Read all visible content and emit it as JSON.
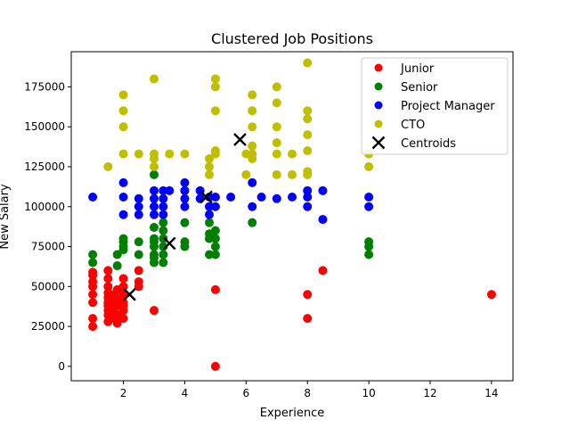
{
  "chart_data": {
    "type": "scatter",
    "title": "Clustered Job Positions",
    "xlabel": "Experience",
    "ylabel": "New Salary",
    "xlim": [
      0.3,
      14.7
    ],
    "ylim": [
      -9000,
      197000
    ],
    "xticks": [
      2,
      4,
      6,
      8,
      10,
      12,
      14
    ],
    "yticks": [
      0,
      25000,
      50000,
      75000,
      100000,
      125000,
      150000,
      175000
    ],
    "ytick_labels": [
      "0",
      "25000",
      "50000",
      "75000",
      "100000",
      "125000",
      "150000",
      "175000"
    ],
    "grid": false,
    "legend_position": "top-right",
    "series": [
      {
        "name": "Junior",
        "color": "#ff0000",
        "marker": "circle",
        "points": [
          [
            1,
            25000
          ],
          [
            1,
            30000
          ],
          [
            1,
            40000
          ],
          [
            1,
            45000
          ],
          [
            1,
            50000
          ],
          [
            1,
            53000
          ],
          [
            1,
            57000
          ],
          [
            1,
            59000
          ],
          [
            1.5,
            28000
          ],
          [
            1.5,
            32000
          ],
          [
            1.5,
            35000
          ],
          [
            1.5,
            38000
          ],
          [
            1.5,
            40000
          ],
          [
            1.5,
            43000
          ],
          [
            1.5,
            46000
          ],
          [
            1.5,
            50000
          ],
          [
            1.5,
            55000
          ],
          [
            1.5,
            60000
          ],
          [
            1.7,
            30000
          ],
          [
            1.7,
            33000
          ],
          [
            1.7,
            36000
          ],
          [
            1.7,
            40000
          ],
          [
            1.7,
            45000
          ],
          [
            1.8,
            27000
          ],
          [
            1.8,
            32000
          ],
          [
            1.8,
            38000
          ],
          [
            1.8,
            42000
          ],
          [
            1.8,
            48000
          ],
          [
            2,
            30000
          ],
          [
            2,
            35000
          ],
          [
            2,
            38000
          ],
          [
            2,
            40000
          ],
          [
            2,
            45000
          ],
          [
            2,
            50000
          ],
          [
            2,
            55000
          ],
          [
            2.5,
            50000
          ],
          [
            2.5,
            53000
          ],
          [
            2.5,
            60000
          ],
          [
            3,
            35000
          ],
          [
            5,
            48000
          ],
          [
            5,
            0
          ],
          [
            8,
            30000
          ],
          [
            8,
            45000
          ],
          [
            8.5,
            60000
          ],
          [
            14,
            45000
          ]
        ]
      },
      {
        "name": "Senior",
        "color": "#008000",
        "marker": "circle",
        "points": [
          [
            1,
            65000
          ],
          [
            1,
            70000
          ],
          [
            1.8,
            63000
          ],
          [
            1.8,
            70000
          ],
          [
            2,
            73000
          ],
          [
            2,
            75000
          ],
          [
            2,
            78000
          ],
          [
            2,
            80000
          ],
          [
            2.5,
            70000
          ],
          [
            2.5,
            78000
          ],
          [
            3,
            65000
          ],
          [
            3,
            68000
          ],
          [
            3,
            70000
          ],
          [
            3,
            75000
          ],
          [
            3,
            78000
          ],
          [
            3,
            80000
          ],
          [
            3,
            87000
          ],
          [
            3,
            120000
          ],
          [
            3.3,
            65000
          ],
          [
            3.3,
            70000
          ],
          [
            3.3,
            75000
          ],
          [
            3.3,
            80000
          ],
          [
            3.3,
            85000
          ],
          [
            3.3,
            90000
          ],
          [
            4,
            75000
          ],
          [
            4,
            78000
          ],
          [
            4,
            90000
          ],
          [
            4.8,
            70000
          ],
          [
            4.8,
            80000
          ],
          [
            4.8,
            83000
          ],
          [
            4.8,
            90000
          ],
          [
            5,
            70000
          ],
          [
            5,
            75000
          ],
          [
            5,
            80000
          ],
          [
            5,
            85000
          ],
          [
            6.2,
            90000
          ],
          [
            10,
            70000
          ],
          [
            10,
            75000
          ],
          [
            10,
            78000
          ]
        ]
      },
      {
        "name": "Project Manager",
        "color": "#0000ff",
        "marker": "circle",
        "points": [
          [
            1,
            106000
          ],
          [
            2,
            95000
          ],
          [
            2,
            106000
          ],
          [
            2,
            115000
          ],
          [
            2.5,
            95000
          ],
          [
            2.5,
            100000
          ],
          [
            2.5,
            105000
          ],
          [
            3,
            95000
          ],
          [
            3,
            100000
          ],
          [
            3,
            105000
          ],
          [
            3,
            110000
          ],
          [
            3.3,
            95000
          ],
          [
            3.3,
            100000
          ],
          [
            3.3,
            105000
          ],
          [
            3.3,
            110000
          ],
          [
            3.5,
            110000
          ],
          [
            4,
            100000
          ],
          [
            4,
            105000
          ],
          [
            4,
            110000
          ],
          [
            4,
            115000
          ],
          [
            4.5,
            105000
          ],
          [
            4.5,
            110000
          ],
          [
            4.8,
            95000
          ],
          [
            4.8,
            100000
          ],
          [
            4.8,
            106000
          ],
          [
            5,
            100000
          ],
          [
            5,
            106000
          ],
          [
            5.5,
            106000
          ],
          [
            6.2,
            100000
          ],
          [
            6.2,
            115000
          ],
          [
            6.5,
            106000
          ],
          [
            7,
            105000
          ],
          [
            7.5,
            106000
          ],
          [
            8,
            100000
          ],
          [
            8,
            106000
          ],
          [
            8,
            110000
          ],
          [
            8.5,
            92000
          ],
          [
            8.5,
            110000
          ],
          [
            10,
            100000
          ],
          [
            10,
            106000
          ]
        ]
      },
      {
        "name": "CTO",
        "color": "#bfbf00",
        "marker": "circle",
        "points": [
          [
            1.5,
            125000
          ],
          [
            2,
            133000
          ],
          [
            2,
            150000
          ],
          [
            2,
            160000
          ],
          [
            2,
            170000
          ],
          [
            2.5,
            133000
          ],
          [
            3,
            125000
          ],
          [
            3,
            130000
          ],
          [
            3,
            133000
          ],
          [
            3,
            180000
          ],
          [
            3.5,
            133000
          ],
          [
            4,
            133000
          ],
          [
            4.8,
            120000
          ],
          [
            4.8,
            125000
          ],
          [
            4.8,
            130000
          ],
          [
            5,
            133000
          ],
          [
            5,
            135000
          ],
          [
            5,
            160000
          ],
          [
            5,
            175000
          ],
          [
            5,
            180000
          ],
          [
            6,
            120000
          ],
          [
            6,
            133000
          ],
          [
            6.2,
            130000
          ],
          [
            6.2,
            133000
          ],
          [
            6.2,
            138000
          ],
          [
            6.2,
            150000
          ],
          [
            6.2,
            160000
          ],
          [
            6.2,
            170000
          ],
          [
            7,
            120000
          ],
          [
            7,
            133000
          ],
          [
            7,
            140000
          ],
          [
            7,
            150000
          ],
          [
            7,
            165000
          ],
          [
            7,
            175000
          ],
          [
            7.5,
            120000
          ],
          [
            7.5,
            133000
          ],
          [
            8,
            120000
          ],
          [
            8,
            122000
          ],
          [
            8,
            135000
          ],
          [
            8,
            145000
          ],
          [
            8,
            155000
          ],
          [
            8,
            160000
          ],
          [
            8,
            190000
          ],
          [
            10,
            125000
          ],
          [
            10,
            133000
          ]
        ]
      },
      {
        "name": "Centroids",
        "color": "#000000",
        "marker": "x",
        "points": [
          [
            2.2,
            45000
          ],
          [
            3.5,
            77000
          ],
          [
            4.7,
            106000
          ],
          [
            5.8,
            142000
          ]
        ]
      }
    ]
  }
}
